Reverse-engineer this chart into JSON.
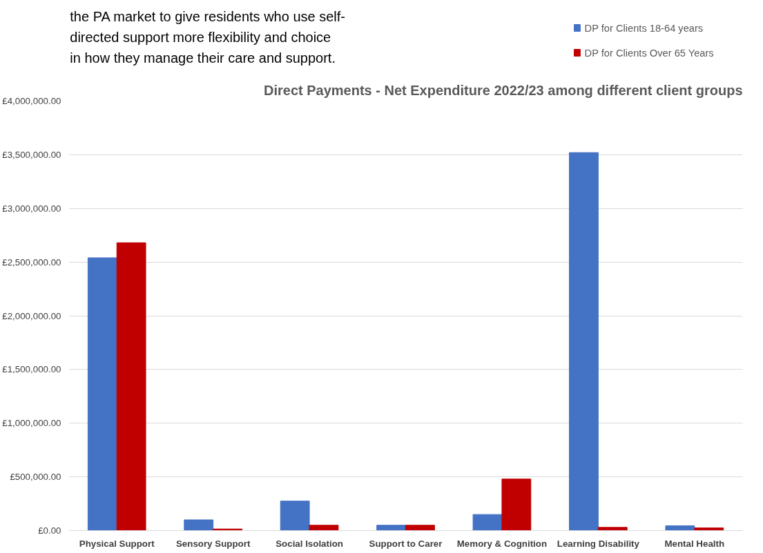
{
  "chart_data": {
    "type": "bar",
    "title": "Direct Payments - Net Expenditure 2022/23 among different client groups",
    "annotations": [
      "the PA market to give residents who use self-directed support more flexibility and choice in how they manage their care and support."
    ],
    "categories": [
      "Physical Support",
      "Sensory Support",
      "Social Isolation",
      "Support to Carer",
      "Memory & Cognition",
      "Learning Disability",
      "Mental Health"
    ],
    "series": [
      {
        "name": "DP for Clients 18-64 years",
        "color": "#4472c4",
        "values": [
          2540000,
          100000,
          275000,
          50000,
          150000,
          3520000,
          45000
        ]
      },
      {
        "name": "DP for Clients Over 65 Years",
        "color": "#c00000",
        "values": [
          2680000,
          15000,
          50000,
          50000,
          480000,
          30000,
          25000
        ]
      }
    ],
    "ylim": [
      0,
      4000000
    ],
    "yticks": [
      {
        "value": 0,
        "label": "£0.00"
      },
      {
        "value": 500000,
        "label": "£500,000.00"
      },
      {
        "value": 1000000,
        "label": "£1,000,000.00"
      },
      {
        "value": 1500000,
        "label": "£1,500,000.00"
      },
      {
        "value": 2000000,
        "label": "£2,000,000.00"
      },
      {
        "value": 2500000,
        "label": "£2,500,000.00"
      },
      {
        "value": 3000000,
        "label": "£3,000,000.00"
      },
      {
        "value": 3500000,
        "label": "£3,500,000.00"
      },
      {
        "value": 4000000,
        "label": "£4,000,000.00"
      }
    ],
    "grid": "y",
    "legend": "top right"
  }
}
